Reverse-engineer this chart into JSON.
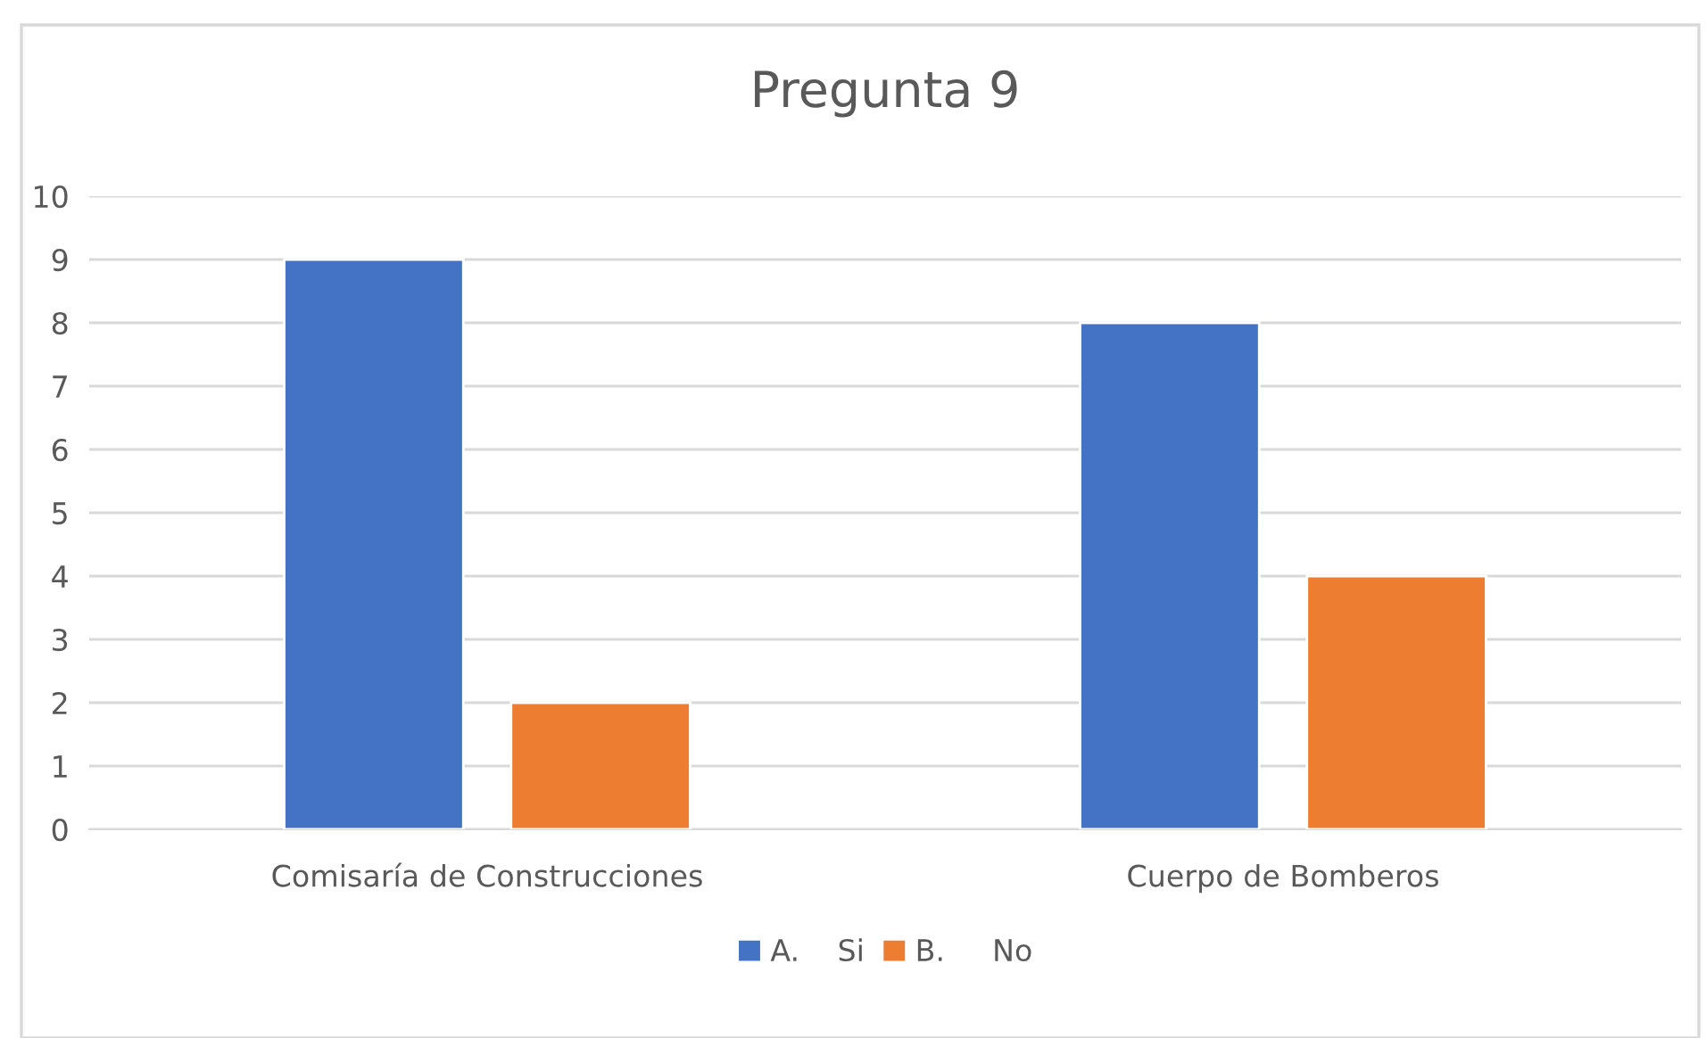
{
  "chart_data": {
    "type": "bar",
    "title": "Pregunta 9",
    "categories": [
      "Comisaría de Construcciones",
      "Cuerpo de Bomberos"
    ],
    "series": [
      {
        "name": "A.    Si",
        "color": "#4472c4",
        "values": [
          9,
          8
        ]
      },
      {
        "name": "B.     No",
        "color": "#ed7d31",
        "values": [
          2,
          4
        ]
      }
    ],
    "ylim": [
      0,
      10
    ],
    "yticks": [
      0,
      1,
      2,
      3,
      4,
      5,
      6,
      7,
      8,
      9,
      10
    ],
    "grid": "y",
    "legend": "bottom"
  }
}
